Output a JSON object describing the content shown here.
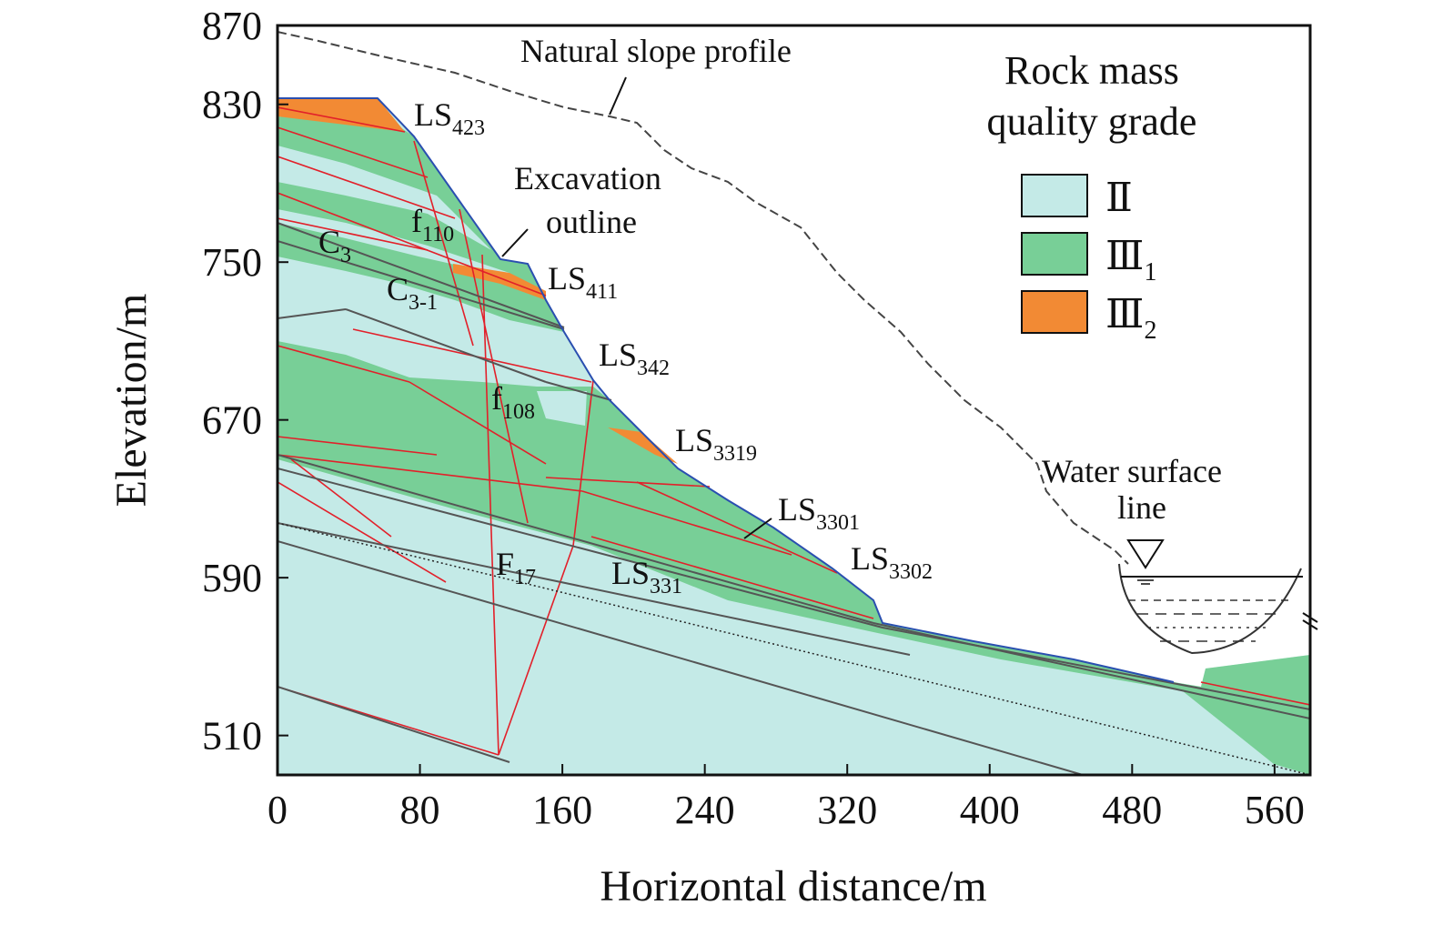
{
  "axes": {
    "x": {
      "title": "Horizontal distance/m",
      "ticks": [
        "0",
        "80",
        "160",
        "240",
        "320",
        "400",
        "480",
        "560"
      ],
      "range": [
        0,
        580
      ]
    },
    "y": {
      "title": "Elevation/m",
      "ticks": [
        "870",
        "830",
        "750",
        "670",
        "590",
        "510"
      ],
      "range": [
        490,
        870
      ]
    }
  },
  "legend": {
    "title_line1": "Rock mass",
    "title_line2": "quality grade",
    "items": [
      {
        "symbol": "Ⅱ",
        "sub": "",
        "color": "#c4eae7"
      },
      {
        "symbol": "Ⅲ",
        "sub": "1",
        "color": "#78cf97"
      },
      {
        "symbol": "Ⅲ",
        "sub": "2",
        "color": "#f28a34"
      }
    ]
  },
  "annotations": {
    "natural_slope": "Natural slope profile",
    "excavation_line1": "Excavation",
    "excavation_line2": "outline",
    "water_line1": "Water surface",
    "water_line2": "line"
  },
  "structures": [
    {
      "base": "LS",
      "sub": "423"
    },
    {
      "base": "f",
      "sub": "110"
    },
    {
      "base": "C",
      "sub": "3"
    },
    {
      "base": "C",
      "sub": "3-1"
    },
    {
      "base": "LS",
      "sub": "411"
    },
    {
      "base": "LS",
      "sub": "342"
    },
    {
      "base": "f",
      "sub": "108"
    },
    {
      "base": "LS",
      "sub": "3319"
    },
    {
      "base": "LS",
      "sub": "3301"
    },
    {
      "base": "LS",
      "sub": "3302"
    },
    {
      "base": "F",
      "sub": "17"
    },
    {
      "base": "LS",
      "sub": "331"
    }
  ],
  "colors": {
    "grade_II": "#c4eae7",
    "grade_III1": "#78cf97",
    "grade_III2": "#f28a34",
    "fault_lines": "#e2202a",
    "excavation_outline": "#2a4fb0"
  }
}
